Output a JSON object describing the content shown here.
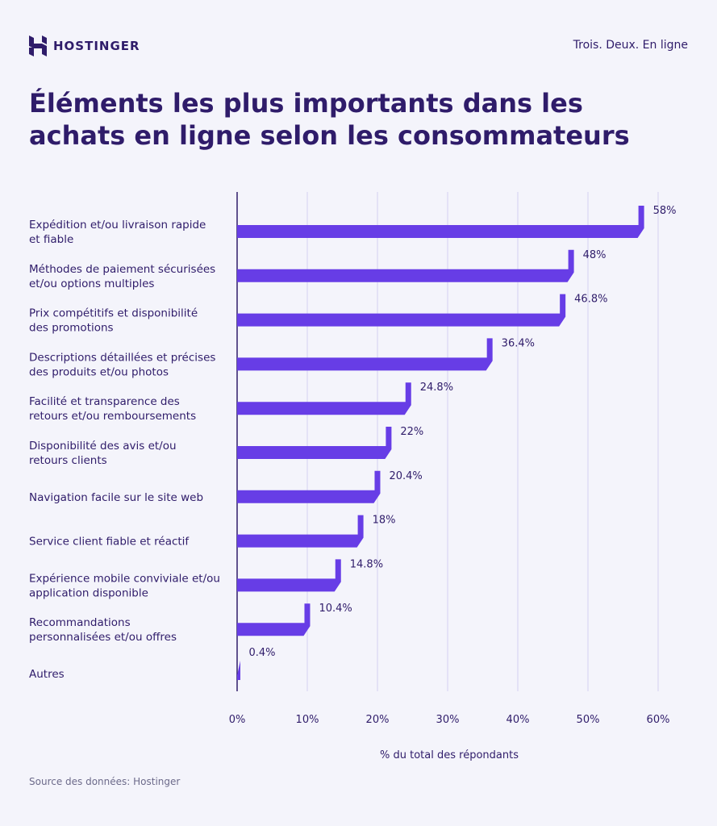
{
  "header": {
    "brand": "HOSTINGER",
    "logo_icon": "hostinger-h-logo-icon",
    "tagline": "Trois. Deux. En ligne"
  },
  "title": "Éléments les plus importants dans les achats en ligne selon les consommateurs",
  "source": "Source des données: Hostinger",
  "colors": {
    "bar": "#673de6",
    "text": "#2f1c6a",
    "grid": "#d4d1f2",
    "background": "#f4f4fb"
  },
  "chart_data": {
    "type": "bar",
    "orientation": "horizontal",
    "categories": [
      [
        "Expédition et/ou livraison rapide",
        "et fiable"
      ],
      [
        "Méthodes de paiement sécurisées",
        "et/ou options multiples"
      ],
      [
        "Prix compétitifs et disponibilité",
        "des promotions"
      ],
      [
        "Descriptions détaillées et précises",
        "des produits et/ou photos"
      ],
      [
        "Facilité et transparence des",
        "retours et/ou remboursements"
      ],
      [
        "Disponibilité des avis et/ou",
        "retours clients"
      ],
      [
        "Navigation facile sur le site web"
      ],
      [
        "Service client fiable et réactif"
      ],
      [
        "Expérience mobile conviviale et/ou",
        "application disponible"
      ],
      [
        "Recommandations",
        "personnalisées et/ou offres"
      ],
      [
        "Autres"
      ]
    ],
    "values": [
      58,
      48,
      46.8,
      36.4,
      24.8,
      22,
      20.4,
      18,
      14.8,
      10.4,
      0.4
    ],
    "value_labels": [
      "58%",
      "48%",
      "46.8%",
      "36.4%",
      "24.8%",
      "22%",
      "20.4%",
      "18%",
      "14.8%",
      "10.4%",
      "0.4%"
    ],
    "xlim": [
      0,
      60
    ],
    "xticks": [
      0,
      10,
      20,
      30,
      40,
      50,
      60
    ],
    "xtick_labels": [
      "0%",
      "10%",
      "20%",
      "30%",
      "40%",
      "50%",
      "60%"
    ],
    "xlabel": "% du total des répondants",
    "grid": true
  }
}
